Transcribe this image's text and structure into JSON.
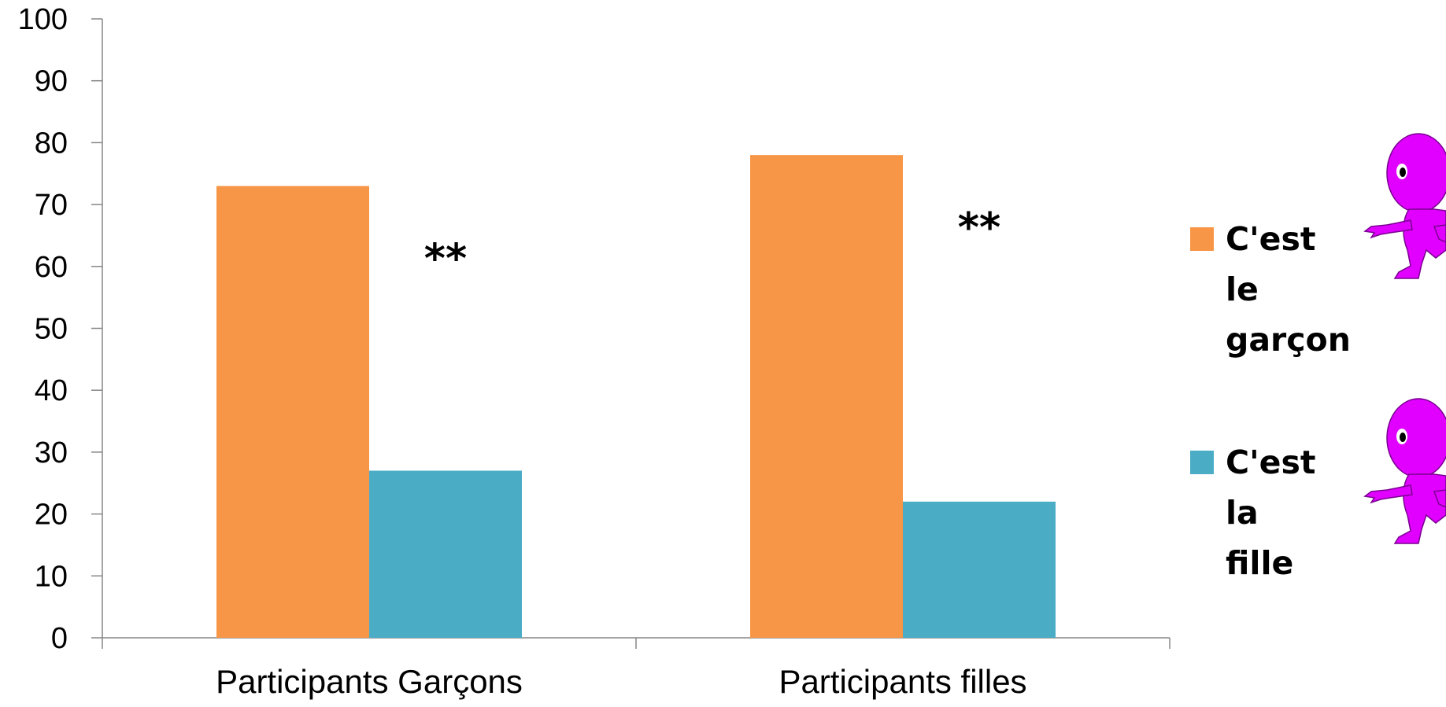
{
  "chart_data": {
    "type": "bar",
    "categories": [
      "Participants Garçons",
      "Participants filles"
    ],
    "series": [
      {
        "name": "C'est le garçon",
        "values": [
          73,
          78
        ],
        "color": "#F79646"
      },
      {
        "name": "C'est la fille",
        "values": [
          27,
          22
        ],
        "color": "#4BACC6"
      }
    ],
    "ylim": [
      0,
      100
    ],
    "yticks": [
      0,
      10,
      20,
      30,
      40,
      50,
      60,
      70,
      80,
      90,
      100
    ],
    "significance": [
      "**",
      "**"
    ],
    "legend_position": "right",
    "grid": false,
    "axis_color": "#868686"
  },
  "legend": {
    "items": [
      {
        "label": "C'est le garçon",
        "color": "#F79646",
        "icon": "purple-alien-pointing-icon"
      },
      {
        "label": "C'est la fille",
        "color": "#4BACC6",
        "icon": "purple-alien-pointing-icon"
      }
    ]
  },
  "icon_color": "#E100FF"
}
